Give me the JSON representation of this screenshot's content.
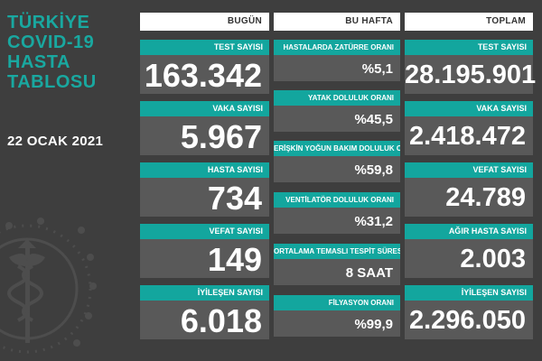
{
  "title_lines": [
    "TÜRKİYE",
    "COVID-19",
    "HASTA",
    "TABLOSU"
  ],
  "date": "22 OCAK 2021",
  "columns": [
    {
      "header": "BUGÜN",
      "items": [
        {
          "label": "TEST SAYISI",
          "value": "163.342"
        },
        {
          "label": "VAKA SAYISI",
          "value": "5.967"
        },
        {
          "label": "HASTA SAYISI",
          "value": "734"
        },
        {
          "label": "VEFAT SAYISI",
          "value": "149"
        },
        {
          "label": "İYİLEŞEN SAYISI",
          "value": "6.018"
        }
      ]
    },
    {
      "header": "BU HAFTA",
      "items": [
        {
          "label": "HASTALARDA ZATÜRRE ORANI",
          "value": "%5,1"
        },
        {
          "label": "YATAK DOLULUK ORANI",
          "value": "%45,5"
        },
        {
          "label": "ERİŞKİN YOĞUN BAKIM DOLULUK ORANI",
          "value": "%59,8"
        },
        {
          "label": "VENTİLATÖR DOLULUK ORANI",
          "value": "%31,2"
        },
        {
          "label": "ORTALAMA TEMASLI TESPİT SÜRESİ",
          "value": "8 SAAT"
        },
        {
          "label": "FİLYASYON ORANI",
          "value": "%99,9"
        }
      ]
    },
    {
      "header": "TOPLAM",
      "items": [
        {
          "label": "TEST SAYISI",
          "value": "28.195.901"
        },
        {
          "label": "VAKA SAYISI",
          "value": "2.418.472"
        },
        {
          "label": "VEFAT SAYISI",
          "value": "24.789"
        },
        {
          "label": "AĞIR HASTA SAYISI",
          "value": "2.003"
        },
        {
          "label": "İYİLEŞEN SAYISI",
          "value": "2.296.050"
        }
      ]
    }
  ]
}
